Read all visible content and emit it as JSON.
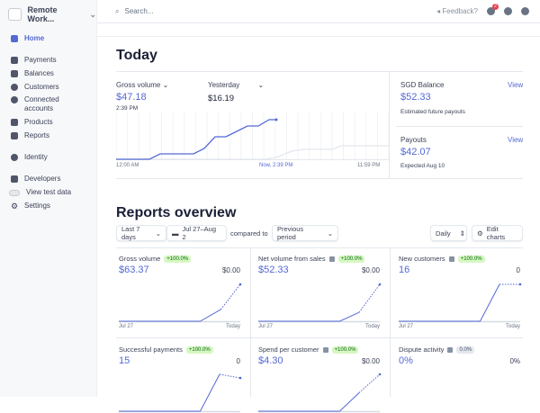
{
  "sidebar": {
    "account": "Remote Work...",
    "items": [
      {
        "label": "Home"
      },
      {
        "label": "Payments"
      },
      {
        "label": "Balances"
      },
      {
        "label": "Customers"
      },
      {
        "label": "Connected accounts"
      },
      {
        "label": "Products"
      },
      {
        "label": "Reports"
      },
      {
        "label": "Identity"
      },
      {
        "label": "Developers"
      },
      {
        "label": "View test data"
      },
      {
        "label": "Settings"
      }
    ]
  },
  "header": {
    "search_placeholder": "Search...",
    "feedback": "Feedback?",
    "notif_count": "2"
  },
  "today": {
    "title": "Today",
    "metric": "Gross volume",
    "metric_value": "$47.18",
    "metric_time": "2:39 PM",
    "compare": "Yesterday",
    "compare_value": "$16.19",
    "x_start": "12:00 AM",
    "x_now": "Now, 2:39 PM",
    "x_end": "11:59 PM",
    "balance": {
      "label": "SGD Balance",
      "view": "View",
      "value": "$52.33",
      "note": "Estimated future payouts"
    },
    "payouts": {
      "label": "Payouts",
      "view": "View",
      "value": "$42.07",
      "note": "Expected Aug 10"
    }
  },
  "reports": {
    "title": "Reports overview",
    "range": "Last 7 days",
    "dates": "Jul 27–Aug 2",
    "compared_to": "compared to",
    "previous": "Previous period",
    "interval": "Daily",
    "edit": "Edit charts",
    "cards": [
      {
        "title": "Gross volume",
        "change": "+100.0%",
        "value": "$63.37",
        "prev": "$0.00",
        "x_start": "Jul 27",
        "x_end": "Today",
        "info": false
      },
      {
        "title": "Net volume from sales",
        "change": "+100.0%",
        "value": "$52.33",
        "prev": "$0.00",
        "x_start": "Jul 27",
        "x_end": "Today",
        "info": true
      },
      {
        "title": "New customers",
        "change": "+100.0%",
        "value": "16",
        "prev": "0",
        "x_start": "Jul 27",
        "x_end": "Today",
        "info": true
      },
      {
        "title": "Successful payments",
        "change": "+100.0%",
        "value": "15",
        "prev": "0",
        "info": false
      },
      {
        "title": "Spend per customer",
        "change": "+100.0%",
        "value": "$4.30",
        "prev": "$0.00",
        "info": true
      },
      {
        "title": "Dispute activity",
        "change": "0.0%",
        "value": "0%",
        "prev": "0%",
        "info": true
      }
    ]
  },
  "colors": {
    "accent": "#5469d4",
    "sidebar_bg": "#f7f8fa",
    "positive_bg": "#d7f7c2"
  }
}
